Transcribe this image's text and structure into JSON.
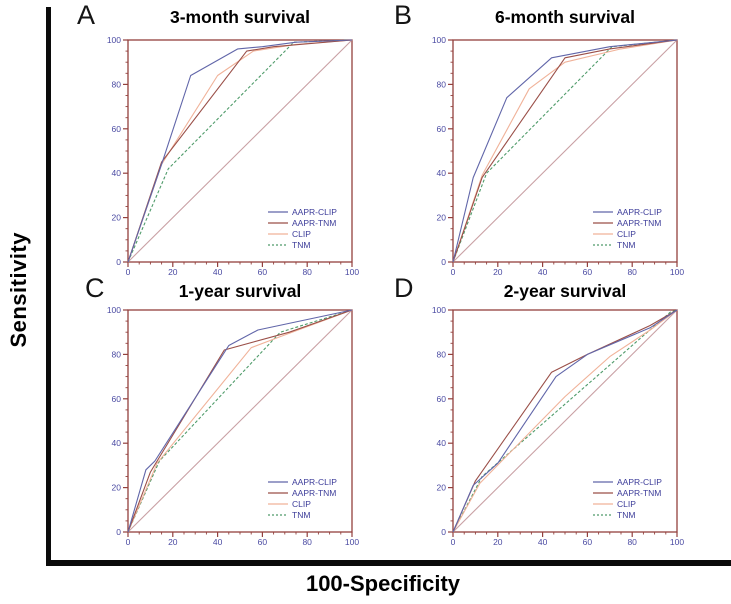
{
  "axes": {
    "y_label": "Sensitivity",
    "x_label": "100-Specificity",
    "xlim": [
      0,
      100
    ],
    "ylim": [
      0,
      100
    ],
    "major_ticks": [
      0,
      20,
      40,
      60,
      80,
      100
    ],
    "minor_tick_step": 5
  },
  "colors": {
    "AAPR-CLIP": "#6166a9",
    "AAPR-TNM": "#9a4f48",
    "CLIP": "#f0b299",
    "TNM": "#4f9b6a",
    "reference": "#c9a0a4",
    "frame": "#93403d",
    "tick_label": "#4a4aa2",
    "legend_text": "#3c3c99"
  },
  "legend": {
    "entries": [
      "AAPR-CLIP",
      "AAPR-TNM",
      "CLIP",
      "TNM"
    ]
  },
  "chart_data": [
    {
      "type": "line",
      "letter": "A",
      "title": "3-month survival",
      "xlabel": "100-Specificity",
      "ylabel": "Sensitivity",
      "xlim": [
        0,
        100
      ],
      "ylim": [
        0,
        100
      ],
      "series": [
        {
          "name": "AAPR-CLIP",
          "color": "AAPR-CLIP",
          "dash": "",
          "points": [
            [
              0,
              0
            ],
            [
              15,
              44
            ],
            [
              28,
              84
            ],
            [
              49,
              96
            ],
            [
              60,
              97
            ],
            [
              75,
              99
            ],
            [
              100,
              100
            ]
          ]
        },
        {
          "name": "AAPR-TNM",
          "color": "AAPR-TNM",
          "dash": "",
          "points": [
            [
              0,
              0
            ],
            [
              15,
              45
            ],
            [
              53,
              95
            ],
            [
              65,
              97
            ],
            [
              100,
              100
            ]
          ]
        },
        {
          "name": "CLIP",
          "color": "CLIP",
          "dash": "",
          "points": [
            [
              0,
              0
            ],
            [
              15,
              44
            ],
            [
              40,
              84
            ],
            [
              56,
              95
            ],
            [
              75,
              98
            ],
            [
              100,
              100
            ]
          ]
        },
        {
          "name": "TNM",
          "color": "TNM",
          "dash": "3,2",
          "points": [
            [
              0,
              0
            ],
            [
              18,
              42
            ],
            [
              74,
              99
            ],
            [
              100,
              100
            ]
          ]
        },
        {
          "name": "reference",
          "color": "reference",
          "dash": "",
          "points": [
            [
              0,
              0
            ],
            [
              100,
              100
            ]
          ]
        }
      ]
    },
    {
      "type": "line",
      "letter": "B",
      "title": "6-month survival",
      "xlabel": "100-Specificity",
      "ylabel": "Sensitivity",
      "xlim": [
        0,
        100
      ],
      "ylim": [
        0,
        100
      ],
      "series": [
        {
          "name": "AAPR-CLIP",
          "color": "AAPR-CLIP",
          "dash": "",
          "points": [
            [
              0,
              0
            ],
            [
              9,
              38
            ],
            [
              24,
              74
            ],
            [
              44,
              92
            ],
            [
              70,
              97
            ],
            [
              100,
              100
            ]
          ]
        },
        {
          "name": "AAPR-TNM",
          "color": "AAPR-TNM",
          "dash": "",
          "points": [
            [
              0,
              0
            ],
            [
              13,
              38
            ],
            [
              50,
              92
            ],
            [
              70,
              96
            ],
            [
              100,
              100
            ]
          ]
        },
        {
          "name": "CLIP",
          "color": "CLIP",
          "dash": "",
          "points": [
            [
              0,
              0
            ],
            [
              13,
              39
            ],
            [
              34,
              78
            ],
            [
              50,
              90
            ],
            [
              75,
              96
            ],
            [
              100,
              100
            ]
          ]
        },
        {
          "name": "TNM",
          "color": "TNM",
          "dash": "3,2",
          "points": [
            [
              0,
              0
            ],
            [
              15,
              40
            ],
            [
              71,
              97
            ],
            [
              100,
              100
            ]
          ]
        },
        {
          "name": "reference",
          "color": "reference",
          "dash": "",
          "points": [
            [
              0,
              0
            ],
            [
              100,
              100
            ]
          ]
        }
      ]
    },
    {
      "type": "line",
      "letter": "C",
      "title": "1-year survival",
      "xlabel": "100-Specificity",
      "ylabel": "Sensitivity",
      "xlim": [
        0,
        100
      ],
      "ylim": [
        0,
        100
      ],
      "series": [
        {
          "name": "AAPR-CLIP",
          "color": "AAPR-CLIP",
          "dash": "",
          "points": [
            [
              0,
              0
            ],
            [
              8,
              28
            ],
            [
              12,
              32
            ],
            [
              45,
              84
            ],
            [
              58,
              91
            ],
            [
              100,
              100
            ]
          ]
        },
        {
          "name": "AAPR-TNM",
          "color": "AAPR-TNM",
          "dash": "",
          "points": [
            [
              0,
              0
            ],
            [
              10,
              27
            ],
            [
              43,
              82
            ],
            [
              72,
              90
            ],
            [
              100,
              100
            ]
          ]
        },
        {
          "name": "CLIP",
          "color": "CLIP",
          "dash": "",
          "points": [
            [
              0,
              0
            ],
            [
              13,
              31
            ],
            [
              55,
              83
            ],
            [
              68,
              88
            ],
            [
              100,
              100
            ]
          ]
        },
        {
          "name": "TNM",
          "color": "TNM",
          "dash": "3,2",
          "points": [
            [
              0,
              0
            ],
            [
              14,
              32
            ],
            [
              68,
              90
            ],
            [
              100,
              100
            ]
          ]
        },
        {
          "name": "reference",
          "color": "reference",
          "dash": "",
          "points": [
            [
              0,
              0
            ],
            [
              100,
              100
            ]
          ]
        }
      ]
    },
    {
      "type": "line",
      "letter": "D",
      "title": "2-year survival",
      "xlabel": "100-Specificity",
      "ylabel": "Sensitivity",
      "xlim": [
        0,
        100
      ],
      "ylim": [
        0,
        100
      ],
      "series": [
        {
          "name": "AAPR-CLIP",
          "color": "AAPR-CLIP",
          "dash": "",
          "points": [
            [
              0,
              0
            ],
            [
              9,
              21
            ],
            [
              20,
              31
            ],
            [
              46,
              70
            ],
            [
              60,
              80
            ],
            [
              88,
              92
            ],
            [
              100,
              100
            ]
          ]
        },
        {
          "name": "AAPR-TNM",
          "color": "AAPR-TNM",
          "dash": "",
          "points": [
            [
              0,
              0
            ],
            [
              10,
              23
            ],
            [
              44,
              72
            ],
            [
              60,
              80
            ],
            [
              88,
              93
            ],
            [
              100,
              100
            ]
          ]
        },
        {
          "name": "CLIP",
          "color": "CLIP",
          "dash": "",
          "points": [
            [
              0,
              0
            ],
            [
              12,
              22
            ],
            [
              50,
              61
            ],
            [
              70,
              79
            ],
            [
              88,
              91
            ],
            [
              100,
              100
            ]
          ]
        },
        {
          "name": "TNM",
          "color": "TNM",
          "dash": "3,2",
          "points": [
            [
              0,
              0
            ],
            [
              13,
              25
            ],
            [
              97,
              99
            ],
            [
              100,
              100
            ]
          ]
        },
        {
          "name": "reference",
          "color": "reference",
          "dash": "",
          "points": [
            [
              0,
              0
            ],
            [
              100,
              100
            ]
          ]
        }
      ]
    }
  ]
}
